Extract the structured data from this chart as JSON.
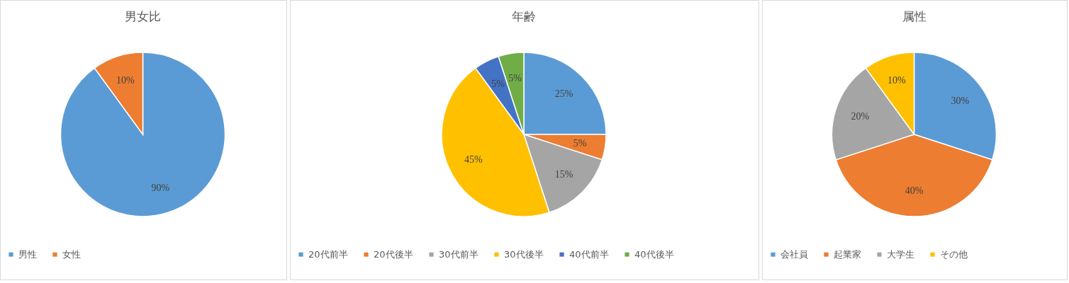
{
  "chart_data": [
    {
      "type": "pie",
      "title": "男女比",
      "categories": [
        "男性",
        "女性"
      ],
      "values": [
        90,
        10
      ],
      "colors": [
        "#5b9bd5",
        "#ed7d31"
      ],
      "value_labels": [
        "90%",
        "10%"
      ],
      "legend": "bottom"
    },
    {
      "type": "pie",
      "title": "年齢",
      "categories": [
        "20代前半",
        "20代後半",
        "30代前半",
        "30代後半",
        "40代前半",
        "40代後半"
      ],
      "values": [
        25,
        5,
        15,
        45,
        5,
        5
      ],
      "colors": [
        "#5b9bd5",
        "#ed7d31",
        "#a5a5a5",
        "#ffc000",
        "#4472c4",
        "#70ad47"
      ],
      "value_labels": [
        "25%",
        "5%",
        "15%",
        "45%",
        "5%",
        "5%"
      ],
      "legend": "bottom"
    },
    {
      "type": "pie",
      "title": "属性",
      "categories": [
        "会社員",
        "起業家",
        "大学生",
        "その他"
      ],
      "values": [
        30,
        40,
        20,
        10
      ],
      "colors": [
        "#5b9bd5",
        "#ed7d31",
        "#a5a5a5",
        "#ffc000"
      ],
      "value_labels": [
        "30%",
        "40%",
        "20%",
        "10%"
      ],
      "legend": "bottom"
    }
  ]
}
